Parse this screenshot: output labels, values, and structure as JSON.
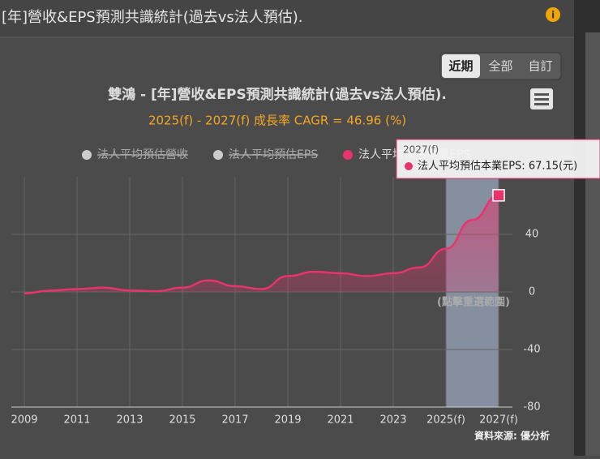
{
  "header": {
    "title": "[年]營收&EPS預測共識統計(過去vs法人預估)."
  },
  "buttons": [
    "近期",
    "全部",
    "自訂"
  ],
  "chart_data": {
    "type": "line",
    "title": "雙鴻 - [年]營收&EPS預測共識統計(過去vs法人預估).",
    "subtitle": "2025(f) - 2027(f) 成長率 CAGR = 46.96 (%)",
    "categories": [
      "2009",
      null,
      "2011",
      null,
      "2013",
      null,
      "2015",
      null,
      "2017",
      null,
      "2019",
      null,
      "2021",
      null,
      "2023",
      null,
      "2025(f)",
      null,
      "2027(f)"
    ],
    "series": [
      {
        "name": "法人平均預估營收",
        "color": "#cccccc",
        "visible": false
      },
      {
        "name": "法人平均預估EPS",
        "color": "#cccccc",
        "visible": false
      },
      {
        "name": "法人平均預估本業EPS",
        "color": "#e8336d",
        "visible": true,
        "values": [
          -1,
          1,
          2,
          3,
          1,
          0.5,
          3,
          8,
          4,
          2,
          11,
          14,
          13,
          11,
          13,
          17,
          30,
          50,
          67.15
        ]
      }
    ],
    "ylim": [
      -80,
      80
    ],
    "yticks": [
      -80,
      -40,
      0,
      40
    ],
    "grid": true,
    "band_note": "(點擊重選範圍)",
    "tooltip": {
      "title": "2027(f)",
      "text": "法人平均預估本業EPS: 67.15(元)"
    },
    "source": "資料來源: 優分析"
  }
}
